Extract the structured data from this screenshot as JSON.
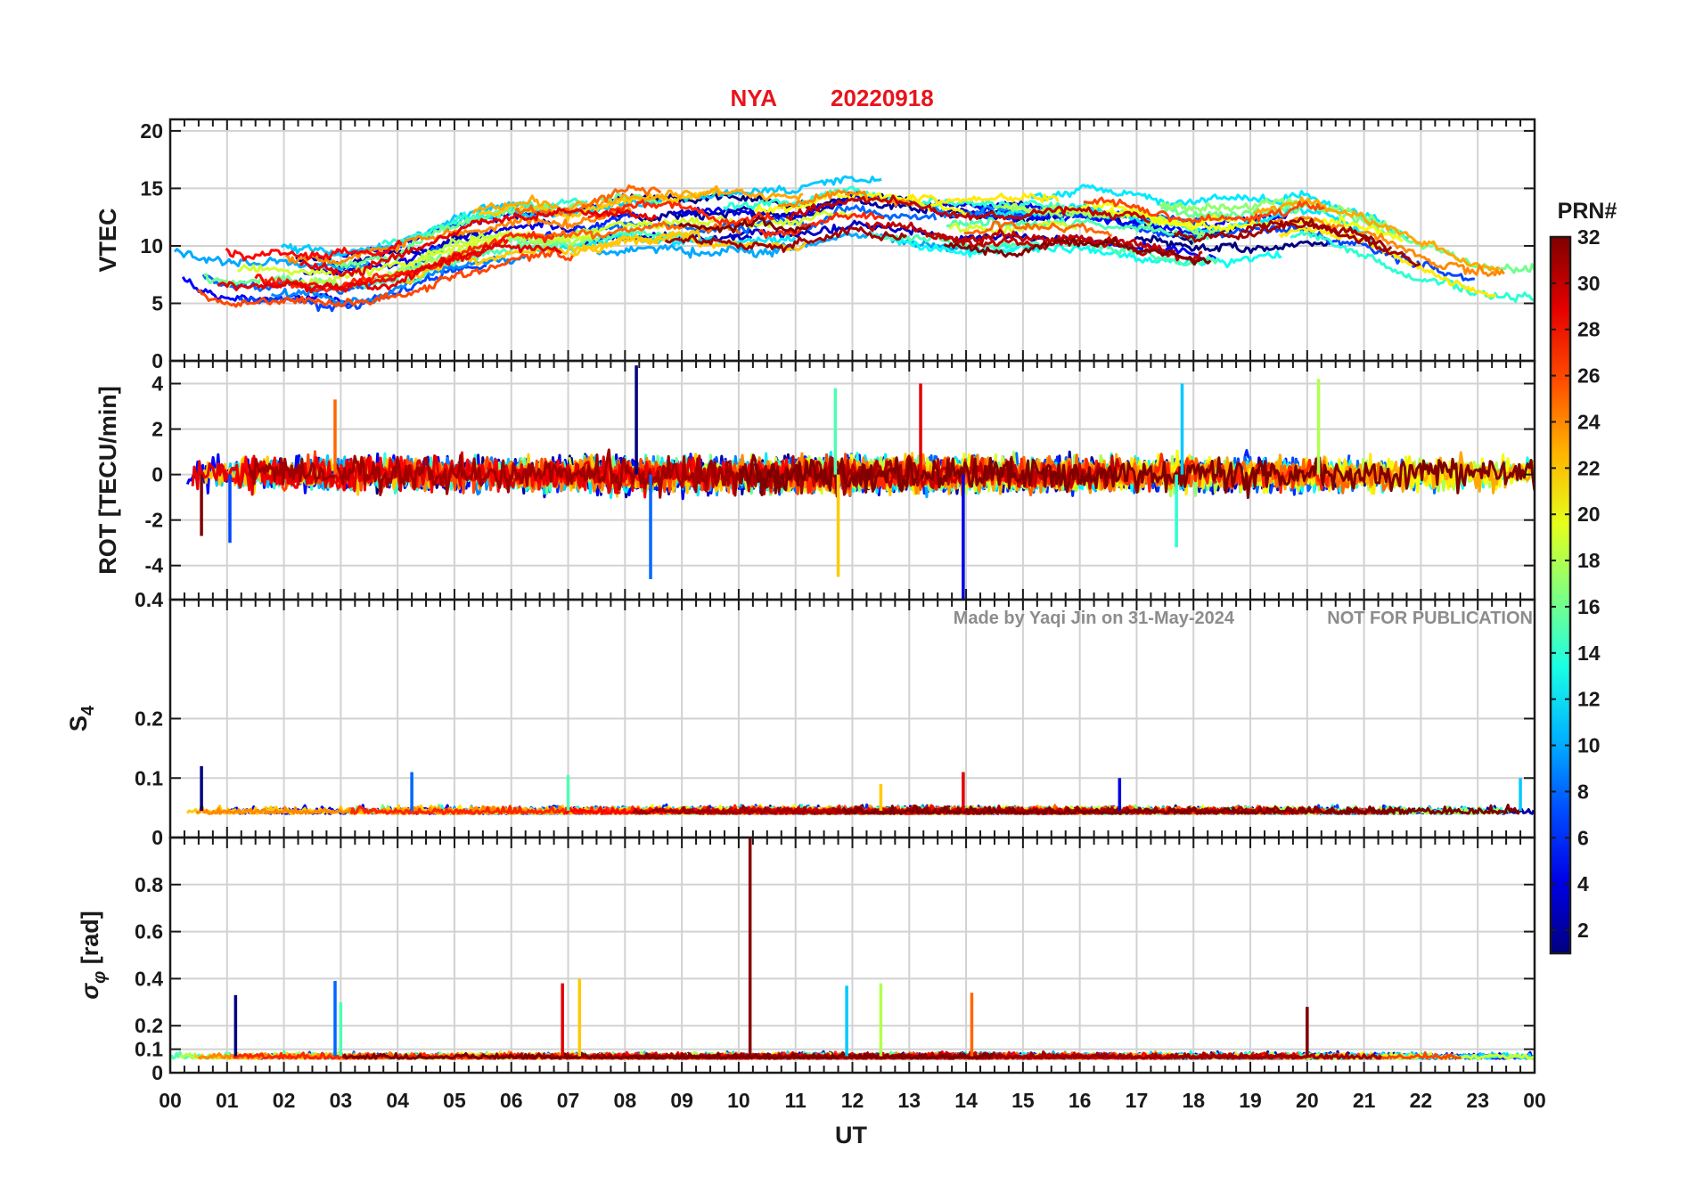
{
  "figure": {
    "station": "NYA",
    "date": "20220918",
    "title_color": "#e8141c",
    "watermark_author": "Made by Yaqi Jin on 31-May-2024",
    "watermark_notice": "NOT FOR PUBLICATION",
    "watermark_color": "#8c8c8c",
    "xlabel": "UT",
    "x_ticks": [
      "00",
      "01",
      "02",
      "03",
      "04",
      "05",
      "06",
      "07",
      "08",
      "09",
      "10",
      "11",
      "12",
      "13",
      "14",
      "15",
      "16",
      "17",
      "18",
      "19",
      "20",
      "21",
      "22",
      "23",
      "00"
    ]
  },
  "colorbar": {
    "label": "PRN#",
    "ticks": [
      "2",
      "4",
      "6",
      "8",
      "10",
      "12",
      "14",
      "16",
      "18",
      "20",
      "22",
      "24",
      "26",
      "28",
      "30",
      "32"
    ],
    "range": [
      1,
      32
    ],
    "colormap": "jet"
  },
  "chart_data": [
    {
      "type": "line",
      "panel": "vtec",
      "ylabel": "VTEC",
      "ylim": [
        0,
        21
      ],
      "y_ticks": [
        "0",
        "5",
        "10",
        "15",
        "20"
      ],
      "x_unit": "UT hours",
      "xlim": [
        0,
        24
      ],
      "grid": true,
      "trend": {
        "x": [
          0,
          1,
          2,
          3,
          4,
          5,
          6,
          7,
          8,
          9,
          10,
          11,
          12,
          13,
          14,
          15,
          16,
          17,
          18,
          19,
          20,
          21,
          22,
          23,
          24
        ],
        "y": [
          9,
          7.5,
          7.5,
          7,
          8,
          10,
          11,
          11,
          12,
          12,
          12,
          12,
          13,
          12.5,
          12,
          12,
          12,
          11.5,
          10.5,
          11,
          11.5,
          10,
          8,
          6.5,
          6
        ]
      },
      "series_note": "Multiple PRN satellite traces (PRN 1-32), colored by PRN using the colorbar"
    },
    {
      "type": "line",
      "panel": "rot",
      "ylabel": "ROT [TECU/min]",
      "ylim": [
        -5.5,
        5
      ],
      "y_ticks": [
        "-4",
        "-2",
        "0",
        "2",
        "4"
      ],
      "xlim": [
        0,
        24
      ],
      "grid": true,
      "noise_amplitude": 1,
      "spikes": [
        {
          "x": 8.2,
          "y": 4.8
        },
        {
          "x": 8.45,
          "y": -4.6
        },
        {
          "x": 11.7,
          "y": 3.8
        },
        {
          "x": 11.75,
          "y": -4.5
        },
        {
          "x": 13.2,
          "y": 4.0
        },
        {
          "x": 13.95,
          "y": -5.5
        },
        {
          "x": 17.8,
          "y": 4.0
        },
        {
          "x": 20.2,
          "y": 4.2
        },
        {
          "x": 2.9,
          "y": 3.3
        },
        {
          "x": 0.55,
          "y": -2.7
        },
        {
          "x": 1.05,
          "y": -3.0
        },
        {
          "x": 17.7,
          "y": -3.2
        }
      ]
    },
    {
      "type": "line",
      "panel": "s4",
      "ylabel": "S4",
      "ylim": [
        0,
        0.4
      ],
      "y_ticks": [
        "0",
        "0.1",
        "0.2",
        "0.4"
      ],
      "xlim": [
        0,
        24
      ],
      "grid": true,
      "baseline": 0.045,
      "spikes": [
        {
          "x": 0.55,
          "y": 0.12
        },
        {
          "x": 4.25,
          "y": 0.11
        },
        {
          "x": 7.0,
          "y": 0.105
        },
        {
          "x": 12.5,
          "y": 0.09
        },
        {
          "x": 13.95,
          "y": 0.11
        },
        {
          "x": 16.7,
          "y": 0.1
        },
        {
          "x": 23.75,
          "y": 0.1
        }
      ]
    },
    {
      "type": "line",
      "panel": "sigma",
      "ylabel": "σ_φ [rad]",
      "ylim": [
        0,
        1
      ],
      "y_ticks": [
        "0",
        "0.1",
        "0.2",
        "0.4",
        "0.6",
        "0.8"
      ],
      "xlim": [
        0,
        24
      ],
      "grid": true,
      "baseline": 0.07,
      "spikes": [
        {
          "x": 1.15,
          "y": 0.33
        },
        {
          "x": 2.9,
          "y": 0.39
        },
        {
          "x": 3.0,
          "y": 0.3
        },
        {
          "x": 7.2,
          "y": 0.4
        },
        {
          "x": 6.9,
          "y": 0.38
        },
        {
          "x": 10.2,
          "y": 1.0
        },
        {
          "x": 11.9,
          "y": 0.37
        },
        {
          "x": 12.5,
          "y": 0.38
        },
        {
          "x": 14.1,
          "y": 0.34
        },
        {
          "x": 20.0,
          "y": 0.28
        }
      ]
    }
  ]
}
